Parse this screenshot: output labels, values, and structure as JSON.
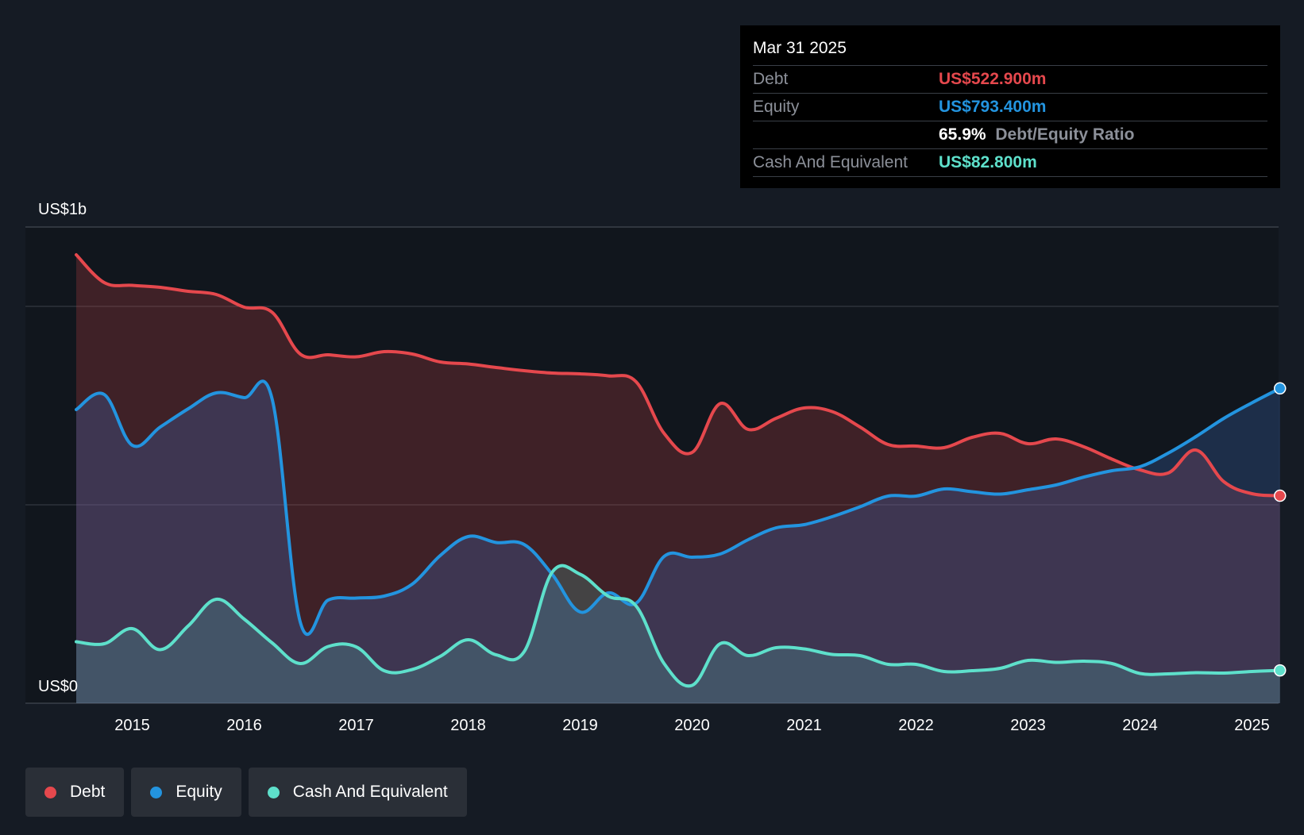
{
  "chart_data": {
    "type": "area",
    "y_unit": "US$m",
    "y_axis_labels": {
      "top": "US$1b",
      "bottom": "US$0"
    },
    "ylim": [
      0,
      1200
    ],
    "gridlines": [
      0,
      500,
      1000,
      1200
    ],
    "x_tick_labels": [
      "2015",
      "2016",
      "2017",
      "2018",
      "2019",
      "2020",
      "2021",
      "2022",
      "2023",
      "2024",
      "2025"
    ],
    "x_ticks": [
      2015,
      2016,
      2017,
      2018,
      2019,
      2020,
      2021,
      2022,
      2023,
      2024,
      2025
    ],
    "xlim": [
      2014.5,
      2025.25
    ],
    "series": [
      {
        "name": "Debt",
        "color": "#e5484d",
        "points": [
          [
            2014.5,
            1130
          ],
          [
            2014.75,
            1060
          ],
          [
            2015.0,
            1053
          ],
          [
            2015.25,
            1048
          ],
          [
            2015.5,
            1038
          ],
          [
            2015.75,
            1030
          ],
          [
            2016.0,
            998
          ],
          [
            2016.25,
            985
          ],
          [
            2016.5,
            880
          ],
          [
            2016.75,
            878
          ],
          [
            2017.0,
            873
          ],
          [
            2017.25,
            886
          ],
          [
            2017.5,
            880
          ],
          [
            2017.75,
            860
          ],
          [
            2018.0,
            855
          ],
          [
            2018.25,
            846
          ],
          [
            2018.5,
            838
          ],
          [
            2018.75,
            832
          ],
          [
            2019.0,
            830
          ],
          [
            2019.25,
            825
          ],
          [
            2019.5,
            810
          ],
          [
            2019.75,
            680
          ],
          [
            2020.0,
            632
          ],
          [
            2020.25,
            755
          ],
          [
            2020.5,
            690
          ],
          [
            2020.75,
            718
          ],
          [
            2021.0,
            744
          ],
          [
            2021.25,
            735
          ],
          [
            2021.5,
            696
          ],
          [
            2021.75,
            652
          ],
          [
            2022.0,
            648
          ],
          [
            2022.25,
            644
          ],
          [
            2022.5,
            670
          ],
          [
            2022.75,
            680
          ],
          [
            2023.0,
            654
          ],
          [
            2023.25,
            666
          ],
          [
            2023.5,
            646
          ],
          [
            2023.75,
            615
          ],
          [
            2024.0,
            588
          ],
          [
            2024.25,
            580
          ],
          [
            2024.5,
            638
          ],
          [
            2024.75,
            558
          ],
          [
            2025.0,
            528
          ],
          [
            2025.25,
            522.9
          ]
        ]
      },
      {
        "name": "Equity",
        "color": "#2394df",
        "points": [
          [
            2014.5,
            740
          ],
          [
            2014.75,
            778
          ],
          [
            2015.0,
            650
          ],
          [
            2015.25,
            696
          ],
          [
            2015.5,
            742
          ],
          [
            2015.75,
            782
          ],
          [
            2016.0,
            770
          ],
          [
            2016.25,
            766
          ],
          [
            2016.5,
            205
          ],
          [
            2016.75,
            260
          ],
          [
            2017.0,
            265
          ],
          [
            2017.25,
            270
          ],
          [
            2017.5,
            300
          ],
          [
            2017.75,
            372
          ],
          [
            2018.0,
            420
          ],
          [
            2018.25,
            405
          ],
          [
            2018.5,
            400
          ],
          [
            2018.75,
            325
          ],
          [
            2019.0,
            230
          ],
          [
            2019.25,
            278
          ],
          [
            2019.5,
            252
          ],
          [
            2019.75,
            370
          ],
          [
            2020.0,
            368
          ],
          [
            2020.25,
            376
          ],
          [
            2020.5,
            412
          ],
          [
            2020.75,
            442
          ],
          [
            2021.0,
            450
          ],
          [
            2021.25,
            470
          ],
          [
            2021.5,
            495
          ],
          [
            2021.75,
            522
          ],
          [
            2022.0,
            522
          ],
          [
            2022.25,
            540
          ],
          [
            2022.5,
            533
          ],
          [
            2022.75,
            527
          ],
          [
            2023.0,
            538
          ],
          [
            2023.25,
            550
          ],
          [
            2023.5,
            570
          ],
          [
            2023.75,
            586
          ],
          [
            2024.0,
            596
          ],
          [
            2024.25,
            630
          ],
          [
            2024.5,
            672
          ],
          [
            2024.75,
            718
          ],
          [
            2025.0,
            757
          ],
          [
            2025.25,
            793.4
          ]
        ]
      },
      {
        "name": "Cash And Equivalent",
        "color": "#5ee0cb",
        "points": [
          [
            2014.5,
            155
          ],
          [
            2014.75,
            150
          ],
          [
            2015.0,
            188
          ],
          [
            2015.25,
            135
          ],
          [
            2015.5,
            195
          ],
          [
            2015.75,
            262
          ],
          [
            2016.0,
            212
          ],
          [
            2016.25,
            152
          ],
          [
            2016.5,
            100
          ],
          [
            2016.75,
            143
          ],
          [
            2017.0,
            142
          ],
          [
            2017.25,
            82
          ],
          [
            2017.5,
            85
          ],
          [
            2017.75,
            118
          ],
          [
            2018.0,
            160
          ],
          [
            2018.25,
            122
          ],
          [
            2018.5,
            130
          ],
          [
            2018.75,
            330
          ],
          [
            2019.0,
            325
          ],
          [
            2019.25,
            270
          ],
          [
            2019.5,
            245
          ],
          [
            2019.75,
            100
          ],
          [
            2020.0,
            45
          ],
          [
            2020.25,
            150
          ],
          [
            2020.5,
            120
          ],
          [
            2020.75,
            140
          ],
          [
            2021.0,
            137
          ],
          [
            2021.25,
            123
          ],
          [
            2021.5,
            120
          ],
          [
            2021.75,
            98
          ],
          [
            2022.0,
            98
          ],
          [
            2022.25,
            80
          ],
          [
            2022.5,
            82
          ],
          [
            2022.75,
            88
          ],
          [
            2023.0,
            108
          ],
          [
            2023.25,
            103
          ],
          [
            2023.5,
            106
          ],
          [
            2023.75,
            100
          ],
          [
            2024.0,
            75
          ],
          [
            2024.25,
            74
          ],
          [
            2024.5,
            77
          ],
          [
            2024.75,
            76
          ],
          [
            2025.0,
            80
          ],
          [
            2025.25,
            82.8
          ]
        ]
      }
    ]
  },
  "tooltip": {
    "date": "Mar 31 2025",
    "rows": [
      {
        "label": "Debt",
        "value": "US$522.900m",
        "color": "#e5484d"
      },
      {
        "label": "Equity",
        "value": "US$793.400m",
        "color": "#2394df"
      },
      {
        "label": "",
        "ratio_value": "65.9%",
        "ratio_label": "Debt/Equity Ratio"
      },
      {
        "label": "Cash And Equivalent",
        "value": "US$82.800m",
        "color": "#5ee0cb"
      }
    ]
  },
  "legend": [
    {
      "label": "Debt",
      "color": "#e5484d"
    },
    {
      "label": "Equity",
      "color": "#2394df"
    },
    {
      "label": "Cash And Equivalent",
      "color": "#5ee0cb"
    }
  ],
  "colors": {
    "background": "#151b24",
    "plot_background": "#11161d",
    "grid": "#3a4049",
    "text": "#ffffff",
    "muted": "#8c9099"
  }
}
